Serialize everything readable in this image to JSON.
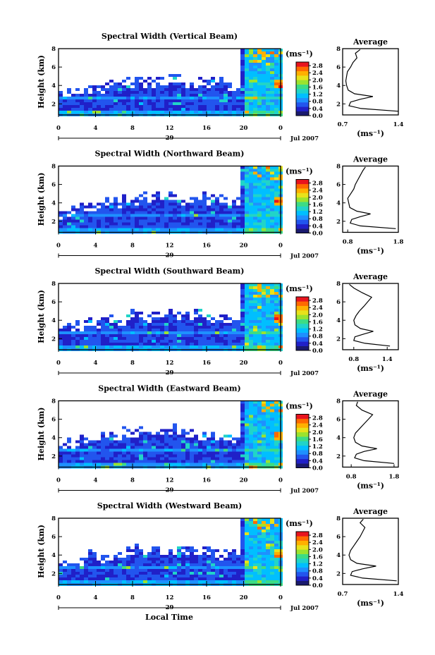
{
  "colors": {
    "colormap": [
      "#1a1a6e",
      "#2020c8",
      "#2255ee",
      "#1e90ff",
      "#00bfff",
      "#21d4c8",
      "#3ddc84",
      "#9be32e",
      "#e8e21a",
      "#ffb000",
      "#ff6a00",
      "#e8141e"
    ],
    "frame": "#000000",
    "background": "#ffffff"
  },
  "figure": {
    "x_axis_title": "Local Time",
    "date_label": "29",
    "month_label": "Jul 2007"
  },
  "chart_data": [
    {
      "type": "heatmap",
      "title": "Spectral Width (Vertical Beam)",
      "ylabel": "Height (km)",
      "xlabel": "Local Time",
      "x_ticks": [
        "0",
        "4",
        "8",
        "12",
        "16",
        "20",
        "0"
      ],
      "y_ticks": [
        "2",
        "4",
        "6",
        "8"
      ],
      "xlim": [
        0,
        24
      ],
      "ylim": [
        0.8,
        8
      ],
      "colorbar": {
        "unit": "(ms⁻¹)",
        "ticks": [
          "0.0",
          "0.4",
          "0.8",
          "1.2",
          "1.6",
          "2.0",
          "2.4",
          "2.8"
        ],
        "range": [
          0,
          3.0
        ]
      },
      "average_panel": {
        "title": "Average",
        "xlabel": "(ms⁻¹)",
        "x_ticks": [
          "0.7",
          "1.4"
        ],
        "y_ticks": [
          "2",
          "4",
          "6",
          "8"
        ],
        "xlim": [
          0.7,
          1.4
        ],
        "profile": [
          [
            1.2,
            1.4
          ],
          [
            1.5,
            0.93
          ],
          [
            1.8,
            0.78
          ],
          [
            2.2,
            0.8
          ],
          [
            2.5,
            0.92
          ],
          [
            2.8,
            1.08
          ],
          [
            3.1,
            0.85
          ],
          [
            3.5,
            0.77
          ],
          [
            4.0,
            0.75
          ],
          [
            4.5,
            0.74
          ],
          [
            5.0,
            0.75
          ],
          [
            5.5,
            0.76
          ],
          [
            6.0,
            0.8
          ],
          [
            6.5,
            0.83
          ],
          [
            7.0,
            0.88
          ],
          [
            7.5,
            0.86
          ],
          [
            7.9,
            0.92
          ]
        ]
      }
    },
    {
      "type": "heatmap",
      "title": "Spectral Width (Northward Beam)",
      "ylabel": "Height (km)",
      "xlabel": "Local Time",
      "x_ticks": [
        "0",
        "4",
        "8",
        "12",
        "16",
        "20",
        "0"
      ],
      "y_ticks": [
        "2",
        "4",
        "6",
        "8"
      ],
      "xlim": [
        0,
        24
      ],
      "ylim": [
        0.8,
        8
      ],
      "colorbar": {
        "unit": "(ms⁻¹)",
        "ticks": [
          "0.0",
          "0.4",
          "0.8",
          "1.2",
          "1.6",
          "2.0",
          "2.4",
          "2.8"
        ],
        "range": [
          0,
          3.0
        ]
      },
      "average_panel": {
        "title": "Average",
        "xlabel": "(ms⁻¹)",
        "x_ticks": [
          "0.8",
          "1.8"
        ],
        "y_ticks": [
          "2",
          "4",
          "6",
          "8"
        ],
        "xlim": [
          0.7,
          1.8
        ],
        "profile": [
          [
            1.2,
            1.75
          ],
          [
            1.5,
            1.05
          ],
          [
            1.8,
            0.85
          ],
          [
            2.2,
            0.88
          ],
          [
            2.5,
            1.05
          ],
          [
            2.8,
            1.25
          ],
          [
            3.1,
            0.98
          ],
          [
            3.5,
            0.84
          ],
          [
            4.0,
            0.82
          ],
          [
            4.5,
            0.8
          ],
          [
            5.0,
            0.86
          ],
          [
            5.5,
            0.92
          ],
          [
            6.0,
            0.95
          ],
          [
            6.5,
            1.0
          ],
          [
            7.0,
            1.05
          ],
          [
            7.5,
            1.1
          ],
          [
            7.9,
            1.15
          ]
        ]
      }
    },
    {
      "type": "heatmap",
      "title": "Spectral Width (Southward Beam)",
      "ylabel": "Height (km)",
      "xlabel": "Local Time",
      "x_ticks": [
        "0",
        "4",
        "8",
        "12",
        "16",
        "20",
        "0"
      ],
      "y_ticks": [
        "2",
        "4",
        "6",
        "8"
      ],
      "xlim": [
        0,
        24
      ],
      "ylim": [
        0.8,
        8
      ],
      "colorbar": {
        "unit": "(ms⁻¹)",
        "ticks": [
          "0.0",
          "0.4",
          "0.8",
          "1.2",
          "1.6",
          "2.0",
          "2.4",
          "2.8"
        ],
        "range": [
          0,
          3.0
        ]
      },
      "average_panel": {
        "title": "Average",
        "xlabel": "(ms⁻¹)",
        "x_ticks": [
          "0.8",
          "1.4"
        ],
        "y_ticks": [
          "2",
          "4",
          "6",
          "8"
        ],
        "xlim": [
          0.6,
          1.6
        ],
        "profile": [
          [
            1.2,
            1.45
          ],
          [
            1.5,
            1.0
          ],
          [
            1.8,
            0.8
          ],
          [
            2.2,
            0.82
          ],
          [
            2.5,
            0.98
          ],
          [
            2.8,
            1.15
          ],
          [
            3.1,
            0.92
          ],
          [
            3.5,
            0.82
          ],
          [
            4.0,
            0.8
          ],
          [
            4.5,
            0.84
          ],
          [
            5.0,
            0.9
          ],
          [
            5.5,
            0.98
          ],
          [
            6.0,
            1.05
          ],
          [
            6.5,
            1.12
          ],
          [
            7.0,
            0.95
          ],
          [
            7.5,
            0.8
          ],
          [
            7.9,
            0.72
          ]
        ]
      }
    },
    {
      "type": "heatmap",
      "title": "Spectral Width (Eastward Beam)",
      "ylabel": "Height (km)",
      "xlabel": "Local Time",
      "x_ticks": [
        "0",
        "4",
        "8",
        "12",
        "16",
        "20",
        "0"
      ],
      "y_ticks": [
        "2",
        "4",
        "6",
        "8"
      ],
      "xlim": [
        0,
        24
      ],
      "ylim": [
        0.8,
        8
      ],
      "colorbar": {
        "unit": "(ms⁻¹)",
        "ticks": [
          "0.0",
          "0.4",
          "0.8",
          "1.2",
          "1.6",
          "2.0",
          "2.4",
          "2.8"
        ],
        "range": [
          0,
          3.0
        ]
      },
      "average_panel": {
        "title": "Average",
        "xlabel": "(ms⁻¹)",
        "x_ticks": [
          "0.8",
          "1.8"
        ],
        "y_ticks": [
          "2",
          "4",
          "6",
          "8"
        ],
        "xlim": [
          0.6,
          1.9
        ],
        "profile": [
          [
            1.2,
            1.8
          ],
          [
            1.5,
            1.1
          ],
          [
            1.8,
            0.88
          ],
          [
            2.2,
            0.92
          ],
          [
            2.5,
            1.1
          ],
          [
            2.8,
            1.4
          ],
          [
            3.1,
            1.05
          ],
          [
            3.5,
            0.9
          ],
          [
            4.0,
            0.86
          ],
          [
            4.5,
            0.9
          ],
          [
            5.0,
            1.0
          ],
          [
            5.5,
            1.1
          ],
          [
            6.0,
            1.2
          ],
          [
            6.5,
            1.3
          ],
          [
            7.0,
            1.05
          ],
          [
            7.5,
            0.92
          ],
          [
            7.9,
            0.95
          ]
        ]
      }
    },
    {
      "type": "heatmap",
      "title": "Spectral Width (Westward Beam)",
      "ylabel": "Height (km)",
      "xlabel": "Local Time",
      "x_ticks": [
        "0",
        "4",
        "8",
        "12",
        "16",
        "20",
        "0"
      ],
      "y_ticks": [
        "2",
        "4",
        "6",
        "8"
      ],
      "xlim": [
        0,
        24
      ],
      "ylim": [
        0.8,
        8
      ],
      "colorbar": {
        "unit": "(ms⁻¹)",
        "ticks": [
          "0.0",
          "0.4",
          "0.8",
          "1.2",
          "1.6",
          "2.0",
          "2.4",
          "2.8"
        ],
        "range": [
          0,
          3.0
        ]
      },
      "average_panel": {
        "title": "Average",
        "xlabel": "(ms⁻¹)",
        "x_ticks": [
          "0.7",
          "1.4"
        ],
        "y_ticks": [
          "2",
          "4",
          "6",
          "8"
        ],
        "xlim": [
          0.7,
          1.4
        ],
        "profile": [
          [
            1.2,
            1.38
          ],
          [
            1.5,
            0.95
          ],
          [
            1.8,
            0.8
          ],
          [
            2.2,
            0.82
          ],
          [
            2.5,
            0.95
          ],
          [
            2.8,
            1.12
          ],
          [
            3.1,
            0.88
          ],
          [
            3.5,
            0.8
          ],
          [
            4.0,
            0.78
          ],
          [
            4.5,
            0.8
          ],
          [
            5.0,
            0.84
          ],
          [
            5.5,
            0.88
          ],
          [
            6.0,
            0.92
          ],
          [
            6.5,
            0.95
          ],
          [
            7.0,
            0.98
          ],
          [
            7.5,
            0.92
          ],
          [
            7.9,
            0.96
          ]
        ]
      }
    }
  ]
}
